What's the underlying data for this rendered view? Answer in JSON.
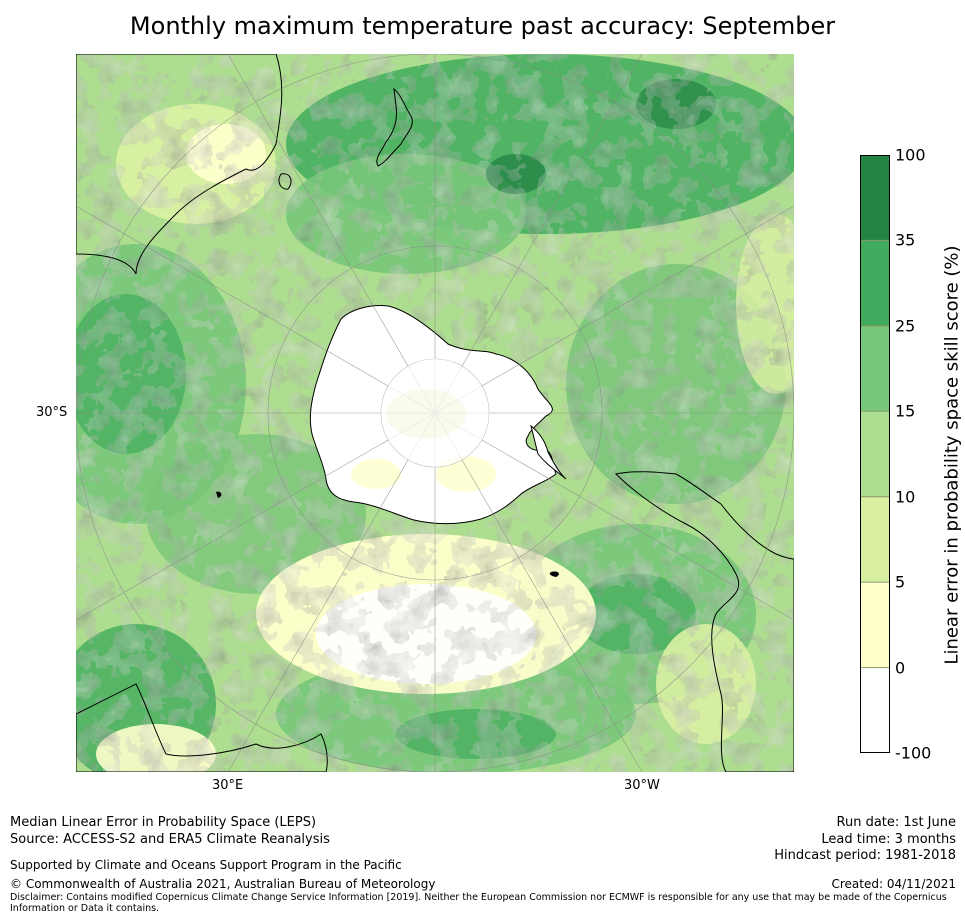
{
  "title": "Monthly maximum temperature past accuracy: September",
  "map": {
    "tick_labels": {
      "left": "30°S",
      "bottom_left": "30°E",
      "bottom_right": "30°W"
    }
  },
  "colorbar": {
    "label": "Linear error in probability space skill score (%)",
    "ticks": [
      "100",
      "35",
      "25",
      "15",
      "10",
      "5",
      "0",
      "-100"
    ],
    "colors": [
      "#238443",
      "#41ab5d",
      "#78c679",
      "#addd8e",
      "#d9f0a3",
      "#ffffcc",
      "#ffffff"
    ]
  },
  "footer": {
    "line1": "Median Linear Error in Probability Space (LEPS)",
    "line2": "Source: ACCESS-S2 and ERA5 Climate Reanalysis",
    "line3": "Supported by Climate and Oceans Support Program in the Pacific",
    "line4": "© Commonwealth of Australia 2021, Australian Bureau of Meteorology",
    "disclaimer": "Disclaimer: Contains modified Copernicus Climate Change Service Information [2019]. Neither the European Commission nor ECMWF is responsible for any use that may be made of the Copernicus Information or Data it contains.",
    "run_date": "Run date: 1st June",
    "lead_time": "Lead time: 3 months",
    "hindcast": "Hindcast period: 1981-2018",
    "created": "Created: 04/11/2021"
  }
}
